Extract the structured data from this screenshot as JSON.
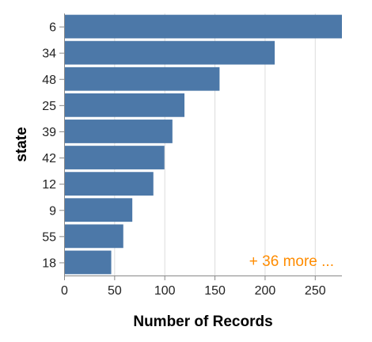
{
  "chart_data": {
    "type": "bar",
    "orientation": "horizontal",
    "categories": [
      "6",
      "34",
      "48",
      "25",
      "39",
      "42",
      "12",
      "9",
      "55",
      "18"
    ],
    "values": [
      277,
      210,
      155,
      120,
      108,
      100,
      89,
      68,
      59,
      47
    ],
    "xlabel": "Number of Records",
    "ylabel": "state",
    "xlim": [
      0,
      277
    ],
    "xticks": [
      0,
      50,
      100,
      150,
      200,
      250
    ],
    "grid": true,
    "bar_color": "#4c78a8",
    "annotation": "+ 36 more ...",
    "annotation_color": "#ff8c00"
  }
}
